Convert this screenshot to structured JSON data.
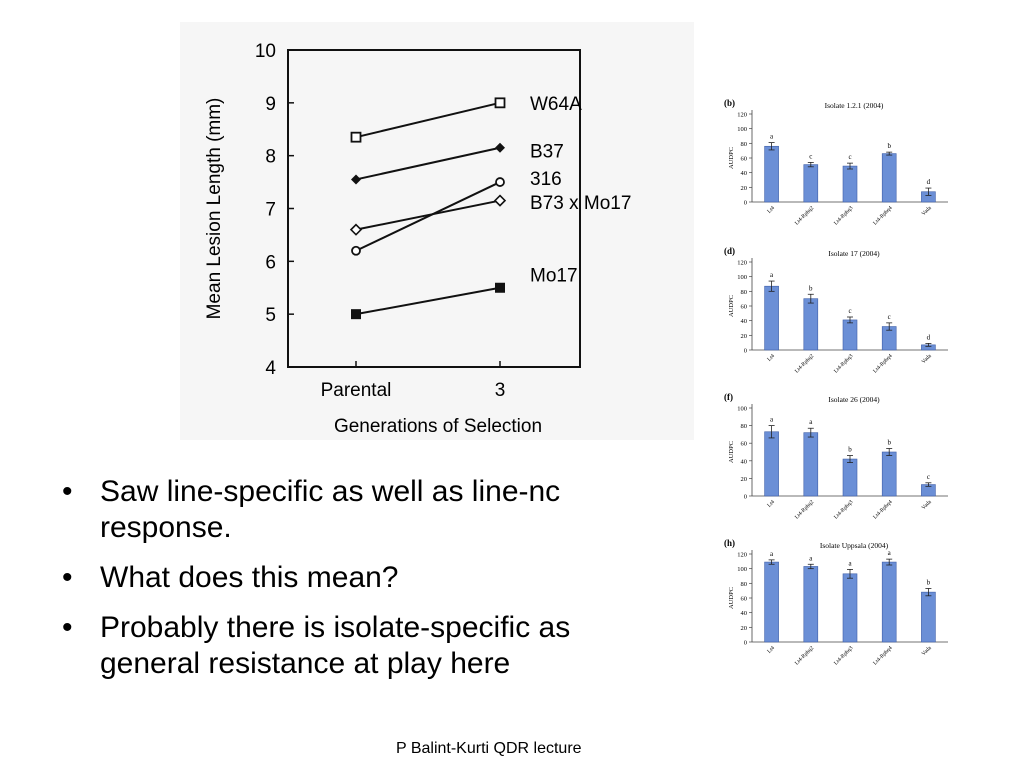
{
  "main_chart": {
    "chart_data": {
      "type": "line",
      "xlabel": "Generations of Selection",
      "ylabel": "Mean Lesion Length (mm)",
      "categories": [
        "Parental",
        "3"
      ],
      "ylim": [
        4,
        10
      ],
      "yticks": [
        4,
        5,
        6,
        7,
        8,
        9,
        10
      ],
      "series": [
        {
          "name": "W64A",
          "marker": "open-square",
          "values": [
            8.35,
            9.0
          ]
        },
        {
          "name": "B37",
          "marker": "filled-diamond",
          "values": [
            7.55,
            8.15
          ]
        },
        {
          "name": "316",
          "marker": "open-circle",
          "values": [
            6.2,
            7.5
          ]
        },
        {
          "name": "B73 x Mo17",
          "marker": "open-diamond",
          "values": [
            6.6,
            7.15
          ]
        },
        {
          "name": "Mo17",
          "marker": "filled-square",
          "values": [
            5.0,
            5.5
          ]
        }
      ]
    }
  },
  "small_charts": [
    {
      "panel_label": "(b)",
      "chart_data": {
        "type": "bar",
        "title": "Isolate 1.2.1 (2004)",
        "ylabel": "AUDPC",
        "ylim": [
          0,
          120
        ],
        "yticks": [
          0,
          20,
          40,
          60,
          80,
          100,
          120
        ],
        "categories": [
          "Lt4",
          "Lt4-Rphq2",
          "Lt4-Rphq3",
          "Lt4-Rphq4",
          "Vada"
        ],
        "values": [
          76,
          51,
          49,
          66,
          14
        ],
        "errors": [
          5,
          3,
          4,
          2,
          5
        ],
        "letters": [
          "a",
          "c",
          "c",
          "b",
          "d"
        ],
        "bar_color": "#6b8fd6"
      }
    },
    {
      "panel_label": "(d)",
      "chart_data": {
        "type": "bar",
        "title": "Isolate 17 (2004)",
        "ylabel": "AUDPC",
        "ylim": [
          0,
          120
        ],
        "yticks": [
          0,
          20,
          40,
          60,
          80,
          100,
          120
        ],
        "categories": [
          "Lt4",
          "Lt4-Rphq2",
          "Lt4-Rphq3",
          "Lt4-Rphq4",
          "Vada"
        ],
        "values": [
          87,
          70,
          41,
          32,
          7
        ],
        "errors": [
          7,
          6,
          4,
          5,
          2
        ],
        "letters": [
          "a",
          "b",
          "c",
          "c",
          "d"
        ],
        "bar_color": "#6b8fd6"
      }
    },
    {
      "panel_label": "(f)",
      "chart_data": {
        "type": "bar",
        "title": "Isolate 26 (2004)",
        "ylabel": "AUDPC",
        "ylim": [
          0,
          100
        ],
        "yticks": [
          0,
          20,
          40,
          60,
          80,
          100
        ],
        "categories": [
          "Lt4",
          "Lt4-Rphq2",
          "Lt4-Rphq3",
          "Lt4-Rphq4",
          "Vada"
        ],
        "values": [
          73,
          72,
          42,
          50,
          13
        ],
        "errors": [
          7,
          5,
          4,
          4,
          2
        ],
        "letters": [
          "a",
          "a",
          "b",
          "b",
          "c"
        ],
        "bar_color": "#6b8fd6"
      }
    },
    {
      "panel_label": "(h)",
      "chart_data": {
        "type": "bar",
        "title": "Isolate Uppsala (2004)",
        "ylabel": "AUDPC",
        "ylim": [
          0,
          120
        ],
        "yticks": [
          0,
          20,
          40,
          60,
          80,
          100,
          120
        ],
        "categories": [
          "Lt4",
          "Lt4-Rphq2",
          "Lt4-Rphq3",
          "Lt4-Rphq4",
          "Vada"
        ],
        "values": [
          109,
          103,
          93,
          109,
          68
        ],
        "errors": [
          3,
          3,
          6,
          4,
          5
        ],
        "letters": [
          "a",
          "a",
          "a",
          "a",
          "b"
        ],
        "bar_color": "#6b8fd6"
      }
    }
  ],
  "bullets": [
    "Saw line-specific as well as line-nc",
    "response.",
    "What does this mean?",
    "Probably there is isolate-specific as",
    "general resistance at play here"
  ],
  "bullet_items": [
    {
      "lines": [
        "Saw line-specific as well as line-nc",
        "response."
      ]
    },
    {
      "lines": [
        "What does this mean?"
      ]
    },
    {
      "lines": [
        "Probably there is isolate-specific as",
        "general resistance at play here"
      ]
    }
  ],
  "bullet_glyph": "•",
  "footer": "P Balint-Kurti QDR lecture"
}
